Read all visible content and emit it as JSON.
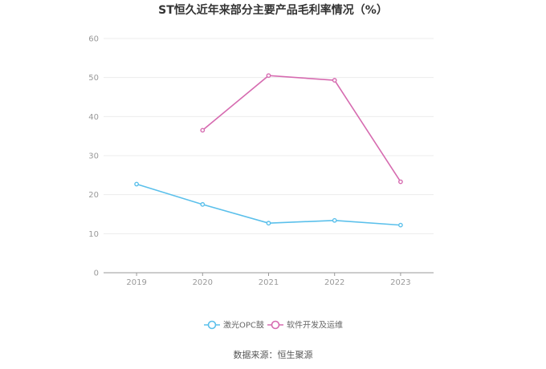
{
  "chart_data": {
    "type": "line",
    "title": "ST恒久近年来部分主要产品毛利率情况（%）",
    "xlabel": "",
    "ylabel": "",
    "x": [
      "2019",
      "2020",
      "2021",
      "2022",
      "2023"
    ],
    "ylim": [
      0,
      60
    ],
    "yticks": [
      "0",
      "10",
      "20",
      "30",
      "40",
      "50",
      "60"
    ],
    "grid": true,
    "legend_position": "bottom",
    "series": [
      {
        "name": "激光OPC鼓",
        "values": [
          22.7,
          17.5,
          12.7,
          13.4,
          12.2
        ],
        "color": "#5bc0eb"
      },
      {
        "name": "软件开发及运维",
        "values": [
          null,
          36.5,
          50.5,
          49.3,
          23.3
        ],
        "color": "#d66bb0"
      }
    ],
    "source": "数据来源：恒生聚源"
  }
}
